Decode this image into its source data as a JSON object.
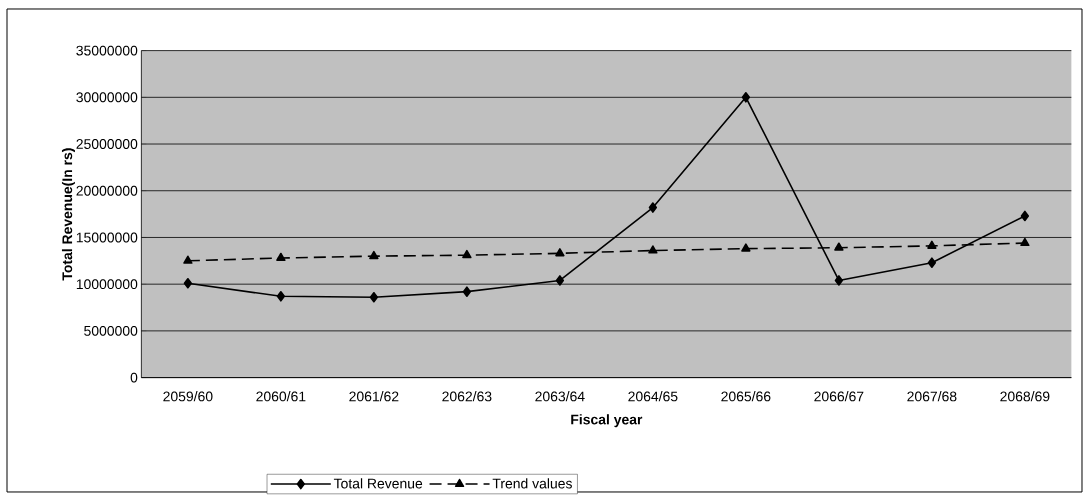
{
  "chart_data": {
    "type": "line",
    "xlabel": "Fiscal year",
    "ylabel": "Total Revenue(In rs)",
    "categories": [
      "2059/60",
      "2060/61",
      "2061/62",
      "2062/63",
      "2063/64",
      "2064/65",
      "2065/66",
      "2066/67",
      "2067/68",
      "2068/69"
    ],
    "series": [
      {
        "name": "Total Revenue",
        "color": "#000000",
        "marker": "diamond",
        "line_style": "solid",
        "values": [
          10100000,
          8700000,
          8600000,
          9200000,
          10400000,
          18200000,
          30000000,
          10400000,
          12300000,
          17300000
        ]
      },
      {
        "name": "Trend values",
        "color": "#000000",
        "marker": "triangle",
        "line_style": "dashed",
        "values": [
          12500000,
          12800000,
          13000000,
          13100000,
          13300000,
          13600000,
          13800000,
          13900000,
          14100000,
          14400000
        ]
      }
    ],
    "ylim": [
      0,
      35000000
    ],
    "yticks": [
      0,
      5000000,
      10000000,
      15000000,
      20000000,
      25000000,
      30000000,
      35000000
    ],
    "grid": "y",
    "legend": "bottom"
  }
}
